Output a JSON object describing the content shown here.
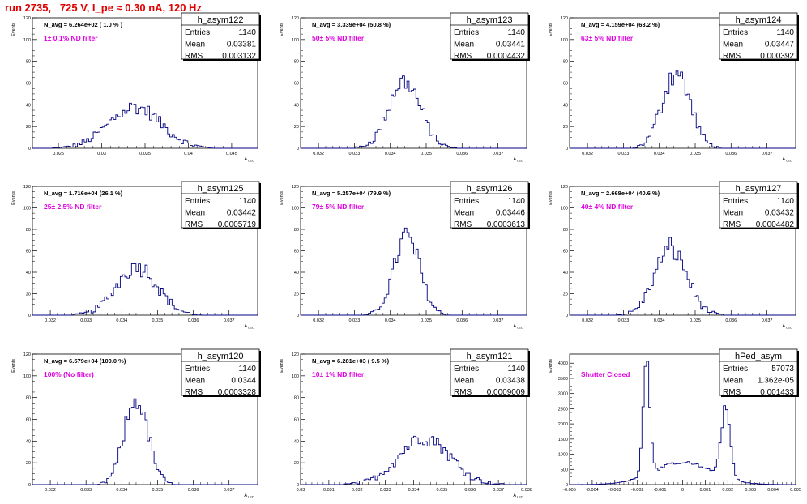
{
  "header": {
    "title": "run 2735,   725 V, I_pe ≈ 0.30 nA, 120 Hz"
  },
  "colors": {
    "title": "#e00000",
    "histogram": "#000080",
    "filter_label": "#e000e0",
    "axes": "#000000"
  },
  "chart_data": [
    {
      "type": "histogram",
      "name": "h_asym122",
      "stats": {
        "entries_label": "Entries",
        "entries": "1140",
        "mean_label": "Mean",
        "mean": "0.03381",
        "rms_label": "RMS",
        "rms": "0.003132"
      },
      "navg": "N_avg = 6.264e+02 ( 1.0 % )",
      "filter": "1± 0.1% ND filter",
      "ylabel": "Events",
      "xlabel": "A_{LED}",
      "xlim": [
        0.022,
        0.048
      ],
      "ylim": [
        0,
        120
      ],
      "xticks": [
        0.025,
        0.03,
        0.035,
        0.04,
        0.045
      ],
      "xticklabels": [
        "0.025",
        "0.03",
        "0.035",
        "0.04",
        "0.045"
      ],
      "yticks": [
        0,
        20,
        40,
        60,
        80,
        100,
        120
      ],
      "yticklabels": [
        "0",
        "20",
        "40",
        "60",
        "80",
        "100",
        "120"
      ],
      "bin_width": 0.00026,
      "peaks": [
        {
          "mean": 0.0338,
          "sigma": 0.003,
          "height": 38
        }
      ]
    },
    {
      "type": "histogram",
      "name": "h_asym123",
      "stats": {
        "entries_label": "Entries",
        "entries": "1140",
        "mean_label": "Mean",
        "mean": "0.03441",
        "rms_label": "RMS",
        "rms": "0.0004432"
      },
      "navg": "N_avg = 3.339e+04 (50.8 %)",
      "filter": "50± 5% ND filter",
      "ylabel": "Events",
      "xlabel": "A_{LED}",
      "xlim": [
        0.0315,
        0.0378
      ],
      "ylim": [
        0,
        120
      ],
      "xticks": [
        0.032,
        0.033,
        0.034,
        0.035,
        0.036,
        0.037
      ],
      "xticklabels": [
        "0.032",
        "0.033",
        "0.034",
        "0.035",
        "0.036",
        "0.037"
      ],
      "yticks": [
        0,
        20,
        40,
        60,
        80,
        100,
        120
      ],
      "yticklabels": [
        "0",
        "20",
        "40",
        "60",
        "80",
        "100",
        "120"
      ],
      "bin_width": 6.3e-05,
      "peaks": [
        {
          "mean": 0.0344,
          "sigma": 0.00044,
          "height": 62
        }
      ]
    },
    {
      "type": "histogram",
      "name": "h_asym124",
      "stats": {
        "entries_label": "Entries",
        "entries": "1140",
        "mean_label": "Mean",
        "mean": "0.03447",
        "rms_label": "RMS",
        "rms": "0.000392"
      },
      "navg": "N_avg = 4.159e+04 (63.2 %)",
      "filter": "63± 5% ND filter",
      "ylabel": "Events",
      "xlabel": "A_{LED}",
      "xlim": [
        0.0315,
        0.0378
      ],
      "ylim": [
        0,
        120
      ],
      "xticks": [
        0.032,
        0.033,
        0.034,
        0.035,
        0.036,
        0.037
      ],
      "xticklabels": [
        "0.032",
        "0.033",
        "0.034",
        "0.035",
        "0.036",
        "0.037"
      ],
      "yticks": [
        0,
        20,
        40,
        60,
        80,
        100,
        120
      ],
      "yticklabels": [
        "0",
        "20",
        "40",
        "60",
        "80",
        "100",
        "120"
      ],
      "bin_width": 6.3e-05,
      "peaks": [
        {
          "mean": 0.03447,
          "sigma": 0.00039,
          "height": 70
        }
      ]
    },
    {
      "type": "histogram",
      "name": "h_asym125",
      "stats": {
        "entries_label": "Entries",
        "entries": "1140",
        "mean_label": "Mean",
        "mean": "0.03442",
        "rms_label": "RMS",
        "rms": "0.0005719"
      },
      "navg": "N_avg = 1.716e+04 (26.1 %)",
      "filter": "25± 2.5% ND filter",
      "ylabel": "Events",
      "xlabel": "A_{LED}",
      "xlim": [
        0.0315,
        0.0378
      ],
      "ylim": [
        0,
        120
      ],
      "xticks": [
        0.032,
        0.033,
        0.034,
        0.035,
        0.036,
        0.037
      ],
      "xticklabels": [
        "0.032",
        "0.033",
        "0.034",
        "0.035",
        "0.036",
        "0.037"
      ],
      "yticks": [
        0,
        20,
        40,
        60,
        80,
        100,
        120
      ],
      "yticklabels": [
        "0",
        "20",
        "40",
        "60",
        "80",
        "100",
        "120"
      ],
      "bin_width": 6.3e-05,
      "peaks": [
        {
          "mean": 0.03442,
          "sigma": 0.00057,
          "height": 46
        }
      ]
    },
    {
      "type": "histogram",
      "name": "h_asym126",
      "stats": {
        "entries_label": "Entries",
        "entries": "1140",
        "mean_label": "Mean",
        "mean": "0.03446",
        "rms_label": "RMS",
        "rms": "0.0003613"
      },
      "navg": "N_avg = 5.257e+04 (79.9 %)",
      "filter": "79± 5% ND filter",
      "ylabel": "Events",
      "xlabel": "A_{LED}",
      "xlim": [
        0.0315,
        0.0378
      ],
      "ylim": [
        0,
        120
      ],
      "xticks": [
        0.032,
        0.033,
        0.034,
        0.035,
        0.036,
        0.037
      ],
      "xticklabels": [
        "0.032",
        "0.033",
        "0.034",
        "0.035",
        "0.036",
        "0.037"
      ],
      "yticks": [
        0,
        20,
        40,
        60,
        80,
        100,
        120
      ],
      "yticklabels": [
        "0",
        "20",
        "40",
        "60",
        "80",
        "100",
        "120"
      ],
      "bin_width": 6.3e-05,
      "peaks": [
        {
          "mean": 0.03446,
          "sigma": 0.00036,
          "height": 74
        }
      ]
    },
    {
      "type": "histogram",
      "name": "h_asym127",
      "stats": {
        "entries_label": "Entries",
        "entries": "1140",
        "mean_label": "Mean",
        "mean": "0.03432",
        "rms_label": "RMS",
        "rms": "0.0004482"
      },
      "navg": "N_avg = 2.668e+04 (40.6 %)",
      "filter": "40± 4% ND filter",
      "ylabel": "Events",
      "xlabel": "A_{LED}",
      "xlim": [
        0.0315,
        0.0378
      ],
      "ylim": [
        0,
        120
      ],
      "xticks": [
        0.032,
        0.033,
        0.034,
        0.035,
        0.036,
        0.037
      ],
      "xticklabels": [
        "0.032",
        "0.033",
        "0.034",
        "0.035",
        "0.036",
        "0.037"
      ],
      "yticks": [
        0,
        20,
        40,
        60,
        80,
        100,
        120
      ],
      "yticklabels": [
        "0",
        "20",
        "40",
        "60",
        "80",
        "100",
        "120"
      ],
      "bin_width": 6.3e-05,
      "peaks": [
        {
          "mean": 0.03432,
          "sigma": 0.00045,
          "height": 62
        }
      ]
    },
    {
      "type": "histogram",
      "name": "h_asym120",
      "stats": {
        "entries_label": "Entries",
        "entries": "1140",
        "mean_label": "Mean",
        "mean": "0.0344",
        "rms_label": "RMS",
        "rms": "0.0003328"
      },
      "navg": "N_avg = 6.579e+04 (100.0 %)",
      "filter": "100% (No filter)",
      "ylabel": "Events",
      "xlabel": "A_{LED}",
      "xlim": [
        0.0315,
        0.0378
      ],
      "ylim": [
        0,
        120
      ],
      "xticks": [
        0.032,
        0.033,
        0.034,
        0.035,
        0.036,
        0.037
      ],
      "xticklabels": [
        "0.032",
        "0.033",
        "0.034",
        "0.035",
        "0.036",
        "0.037"
      ],
      "yticks": [
        0,
        20,
        40,
        60,
        80,
        100,
        120
      ],
      "yticklabels": [
        "0",
        "20",
        "40",
        "60",
        "80",
        "100",
        "120"
      ],
      "bin_width": 6.3e-05,
      "peaks": [
        {
          "mean": 0.0344,
          "sigma": 0.00033,
          "height": 78
        }
      ]
    },
    {
      "type": "histogram",
      "name": "h_asym121",
      "stats": {
        "entries_label": "Entries",
        "entries": "1140",
        "mean_label": "Mean",
        "mean": "0.03438",
        "rms_label": "RMS",
        "rms": "0.0009009"
      },
      "navg": "N_avg = 6.281e+03 ( 9.5 %)",
      "filter": "10± 1% ND filter",
      "ylabel": "Events",
      "xlabel": "A_{LED}",
      "xlim": [
        0.03,
        0.038
      ],
      "ylim": [
        0,
        120
      ],
      "xticks": [
        0.03,
        0.031,
        0.032,
        0.033,
        0.034,
        0.035,
        0.036,
        0.037,
        0.038
      ],
      "xticklabels": [
        "0.03",
        "0.031",
        "0.032",
        "0.033",
        "0.034",
        "0.035",
        "0.036",
        "0.037",
        "0.038"
      ],
      "yticks": [
        0,
        20,
        40,
        60,
        80,
        100,
        120
      ],
      "yticklabels": [
        "0",
        "20",
        "40",
        "60",
        "80",
        "100",
        "120"
      ],
      "bin_width": 8e-05,
      "peaks": [
        {
          "mean": 0.03438,
          "sigma": 0.0009,
          "height": 44
        }
      ]
    },
    {
      "type": "histogram",
      "name": "hPed_asym",
      "stats": {
        "entries_label": "Entries",
        "entries": "57073",
        "mean_label": "Mean",
        "mean": "1.362e-05",
        "rms_label": "RMS",
        "rms": "0.001433"
      },
      "navg": "",
      "filter": "Shutter Closed",
      "ylabel": "Events",
      "xlabel": "",
      "xlim": [
        -0.005,
        0.005
      ],
      "ylim": [
        0,
        4300
      ],
      "xticks": [
        -0.005,
        -0.004,
        -0.003,
        -0.002,
        -0.001,
        0,
        0.001,
        0.002,
        0.003,
        0.004,
        0.005
      ],
      "xticklabels": [
        "-0.005",
        "-0.004",
        "-0.003",
        "-0.002",
        "-0.001",
        "0",
        "0.001",
        "0.002",
        "0.003",
        "0.004",
        "0.005"
      ],
      "yticks": [
        0,
        500,
        1000,
        1500,
        2000,
        2500,
        3000,
        3500,
        4000
      ],
      "yticklabels": [
        "0",
        "500",
        "1000",
        "1500",
        "2000",
        "2500",
        "3000",
        "3500",
        "4000"
      ],
      "bin_width": 0.0001,
      "peaks": [
        {
          "mean": -0.0016,
          "sigma": 0.00015,
          "height": 3850
        },
        {
          "mean": 0.0019,
          "sigma": 0.0002,
          "height": 2300
        },
        {
          "mean": 0.0,
          "sigma": 0.0013,
          "height": 720
        }
      ]
    }
  ]
}
